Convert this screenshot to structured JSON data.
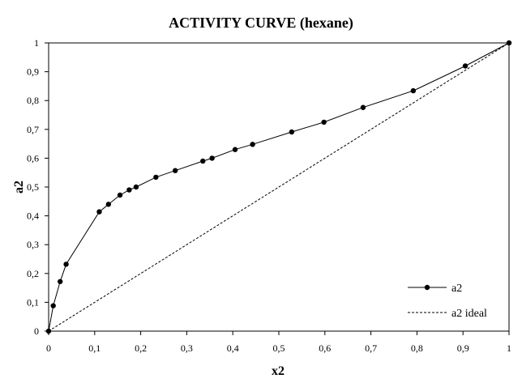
{
  "chart_data": {
    "type": "line",
    "title": "ACTIVITY CURVE (hexane)",
    "xlabel": "x2",
    "ylabel": "a2",
    "xlim": [
      0,
      1
    ],
    "ylim": [
      0,
      1
    ],
    "x_ticks": [
      "0",
      "0,1",
      "0,2",
      "0,3",
      "0,4",
      "0,5",
      "0,6",
      "0,7",
      "0,8",
      "0,9",
      "1"
    ],
    "y_ticks": [
      "0",
      "0,1",
      "0,2",
      "0,3",
      "0,4",
      "0,5",
      "0,6",
      "0,7",
      "0,8",
      "0,9",
      "1"
    ],
    "grid": false,
    "legend_position": "bottom-right",
    "series": [
      {
        "name": "a2",
        "style": "solid-with-markers",
        "color": "#000000",
        "x": [
          0,
          0.01,
          0.025,
          0.038,
          0.11,
          0.13,
          0.155,
          0.175,
          0.19,
          0.233,
          0.275,
          0.335,
          0.355,
          0.405,
          0.443,
          0.528,
          0.598,
          0.683,
          0.792,
          0.905,
          1.0
        ],
        "y": [
          0,
          0.088,
          0.172,
          0.232,
          0.414,
          0.44,
          0.472,
          0.49,
          0.5,
          0.534,
          0.557,
          0.59,
          0.6,
          0.63,
          0.648,
          0.691,
          0.725,
          0.776,
          0.834,
          0.92,
          1.0
        ]
      },
      {
        "name": "a2 ideal",
        "style": "dashed",
        "color": "#000000",
        "x": [
          0,
          1
        ],
        "y": [
          0,
          1
        ]
      }
    ]
  }
}
